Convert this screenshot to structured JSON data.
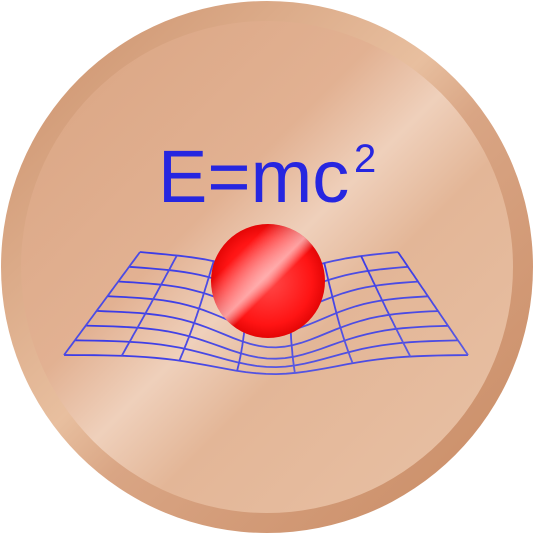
{
  "badge": {
    "formula": {
      "base": "E=mc",
      "exponent": "2"
    },
    "icons": [
      "copper-disc-icon",
      "spacetime-grid-icon",
      "mass-sphere-icon"
    ]
  },
  "colors": {
    "disc_rim": "#d29a78",
    "disc_face": "#e6b998",
    "disc_highlight": "#f2d6c2",
    "formula_blue": "#2626e0",
    "grid_blue": "#4a4ae6",
    "sphere_red": "#ff1a1a",
    "sphere_highlight": "#ff9a9a",
    "sphere_dark": "#c80000"
  }
}
